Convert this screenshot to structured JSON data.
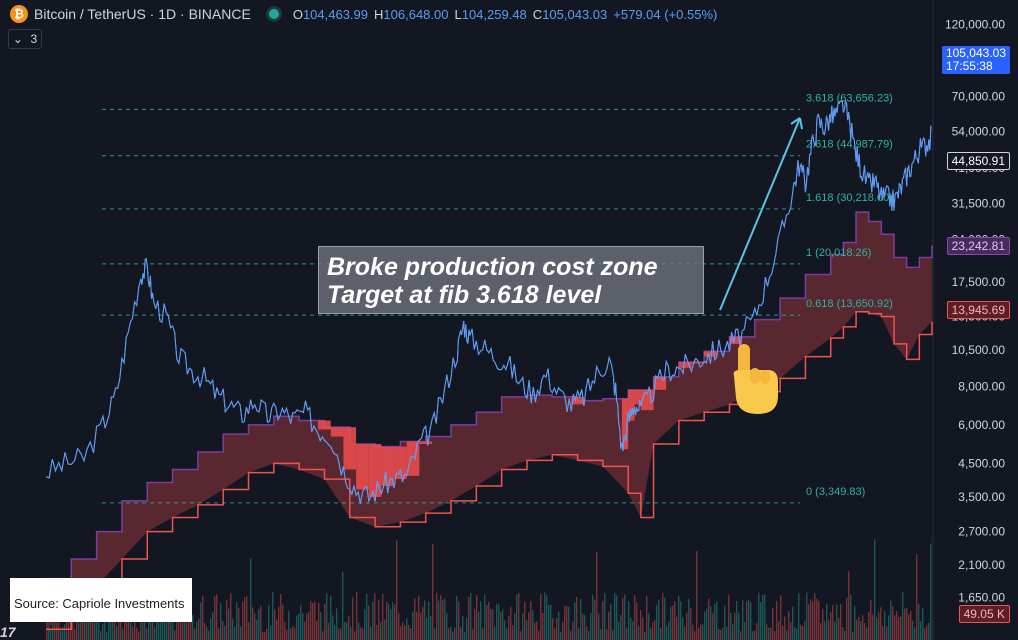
{
  "header": {
    "symbol": "Bitcoin / TetherUS · 1D · BINANCE",
    "coin_glyph": "₿",
    "ohlc": [
      {
        "k": "O",
        "v": "104,463.99"
      },
      {
        "k": "H",
        "v": "106,648.00"
      },
      {
        "k": "L",
        "v": "104,259.48"
      },
      {
        "k": "C",
        "v": "105,043.03"
      }
    ],
    "change": "+579.04 (+0.55%)",
    "indicator_count": "3",
    "chevron": "⌄"
  },
  "annotation": {
    "line1": "Broke production cost zone",
    "line2": "Target at fib 3.618 level"
  },
  "source": "Source: Capriole Investments",
  "logo": "17",
  "colors": {
    "background": "#131722",
    "price": "#5b9cf6",
    "cost_band_fill": "#5d2830",
    "cost_upper": "#7b3ea0",
    "cost_lower": "#f05350",
    "fib_line": "#2bb5a0",
    "arrow": "#5bc4e6"
  },
  "price_labels": {
    "last_price": "105,043.03",
    "countdown": "17:55:38",
    "ma_value": "44,850.91",
    "upper_value": "23,242.81",
    "lower_value": "13,945.69",
    "volume_value": "49.05 K"
  },
  "chart_data": {
    "type": "line",
    "scale": "log",
    "ylim": [
      1200,
      140000
    ],
    "yticks": [
      {
        "value": 120000,
        "label": "120,000.00"
      },
      {
        "value": 70000,
        "label": "70,000.00"
      },
      {
        "value": 54000,
        "label": "54,000.00"
      },
      {
        "value": 41000,
        "label": "41,000.00"
      },
      {
        "value": 31500,
        "label": "31,500.00"
      },
      {
        "value": 24000,
        "label": "24,000.00"
      },
      {
        "value": 17500,
        "label": "17,500.00"
      },
      {
        "value": 13500,
        "label": "13,500.00"
      },
      {
        "value": 10500,
        "label": "10,500.00"
      },
      {
        "value": 8000,
        "label": "8,000.00"
      },
      {
        "value": 6000,
        "label": "6,000.00"
      },
      {
        "value": 4500,
        "label": "4,500.00"
      },
      {
        "value": 3500,
        "label": "3,500.00"
      },
      {
        "value": 2700,
        "label": "2,700.00"
      },
      {
        "value": 2100,
        "label": "2,100.00"
      },
      {
        "value": 1650,
        "label": "1,650.00"
      }
    ],
    "fib_levels": [
      {
        "value": 63656.23,
        "label": "3.618 (63,656.23)"
      },
      {
        "value": 44987.79,
        "label": "2.618 (44,987.79)"
      },
      {
        "value": 30218.0,
        "label": "1.618 (30,218.00)"
      },
      {
        "value": 20018.26,
        "label": "1 (20,018.26)"
      },
      {
        "value": 13650.92,
        "label": "0.618 (13,650.92)"
      },
      {
        "value": 3349.83,
        "label": "0 (3,349.83)"
      }
    ],
    "price_series": [
      [
        0,
        4200
      ],
      [
        3,
        4500
      ],
      [
        6,
        4700
      ],
      [
        9,
        6000
      ],
      [
        11,
        7500
      ],
      [
        13,
        12000
      ],
      [
        15,
        18500
      ],
      [
        16,
        19500
      ],
      [
        17,
        15000
      ],
      [
        19,
        13500
      ],
      [
        21,
        10000
      ],
      [
        23,
        9000
      ],
      [
        25,
        8500
      ],
      [
        27,
        7500
      ],
      [
        29,
        7000
      ],
      [
        31,
        6500
      ],
      [
        33,
        7200
      ],
      [
        35,
        6400
      ],
      [
        37,
        6700
      ],
      [
        39,
        6300
      ],
      [
        41,
        6600
      ],
      [
        43,
        5800
      ],
      [
        45,
        5500
      ],
      [
        47,
        4300
      ],
      [
        49,
        3700
      ],
      [
        51,
        3500
      ],
      [
        53,
        3800
      ],
      [
        55,
        4000
      ],
      [
        57,
        4100
      ],
      [
        59,
        5200
      ],
      [
        61,
        5800
      ],
      [
        63,
        7800
      ],
      [
        65,
        10500
      ],
      [
        66,
        12800
      ],
      [
        67,
        11500
      ],
      [
        69,
        10800
      ],
      [
        71,
        10000
      ],
      [
        73,
        9500
      ],
      [
        75,
        8200
      ],
      [
        77,
        7600
      ],
      [
        79,
        8800
      ],
      [
        81,
        7600
      ],
      [
        83,
        7000
      ],
      [
        85,
        7400
      ],
      [
        87,
        8800
      ],
      [
        89,
        9800
      ],
      [
        90,
        7800
      ],
      [
        91,
        5000
      ],
      [
        92,
        6200
      ],
      [
        93,
        7000
      ],
      [
        94,
        6700
      ],
      [
        96,
        7800
      ],
      [
        98,
        9000
      ],
      [
        100,
        9200
      ],
      [
        102,
        9500
      ],
      [
        104,
        10000
      ],
      [
        106,
        10500
      ],
      [
        108,
        11000
      ],
      [
        110,
        11800
      ],
      [
        112,
        13500
      ],
      [
        114,
        18000
      ],
      [
        116,
        24000
      ],
      [
        118,
        35000
      ],
      [
        119,
        42000
      ],
      [
        120,
        37000
      ],
      [
        121,
        48000
      ],
      [
        122,
        58000
      ],
      [
        123,
        56000
      ],
      [
        124,
        60000
      ],
      [
        125,
        62000
      ],
      [
        126,
        66000
      ],
      [
        127,
        57000
      ],
      [
        128,
        46000
      ],
      [
        129,
        40000
      ],
      [
        130,
        36000
      ],
      [
        131,
        37000
      ],
      [
        132,
        33000
      ],
      [
        133,
        33000
      ],
      [
        134,
        32000
      ],
      [
        135,
        35000
      ],
      [
        136,
        39000
      ],
      [
        137,
        43000
      ],
      [
        138,
        47000
      ],
      [
        139,
        49000
      ],
      [
        140,
        52000
      ]
    ],
    "cost_upper": [
      [
        0,
        1900
      ],
      [
        4,
        2200
      ],
      [
        8,
        2700
      ],
      [
        12,
        3400
      ],
      [
        16,
        3900
      ],
      [
        20,
        4300
      ],
      [
        24,
        4900
      ],
      [
        28,
        5600
      ],
      [
        32,
        6000
      ],
      [
        36,
        6400
      ],
      [
        40,
        6200
      ],
      [
        44,
        5900
      ],
      [
        48,
        5200
      ],
      [
        52,
        5100
      ],
      [
        56,
        5300
      ],
      [
        60,
        5500
      ],
      [
        64,
        6000
      ],
      [
        68,
        6600
      ],
      [
        72,
        7400
      ],
      [
        76,
        7500
      ],
      [
        80,
        7400
      ],
      [
        84,
        7200
      ],
      [
        88,
        7300
      ],
      [
        92,
        7800
      ],
      [
        96,
        8600
      ],
      [
        100,
        9600
      ],
      [
        104,
        10400
      ],
      [
        108,
        11600
      ],
      [
        112,
        13200
      ],
      [
        116,
        15500
      ],
      [
        120,
        18500
      ],
      [
        124,
        21500
      ],
      [
        126,
        23500
      ],
      [
        128,
        29500
      ],
      [
        130,
        27500
      ],
      [
        132,
        25000
      ],
      [
        134,
        21000
      ],
      [
        136,
        19500
      ],
      [
        138,
        21000
      ],
      [
        140,
        23000
      ]
    ],
    "cost_lower": [
      [
        0,
        1300
      ],
      [
        4,
        1500
      ],
      [
        8,
        1800
      ],
      [
        12,
        2200
      ],
      [
        16,
        2700
      ],
      [
        20,
        3000
      ],
      [
        24,
        3300
      ],
      [
        28,
        3700
      ],
      [
        32,
        4200
      ],
      [
        36,
        4500
      ],
      [
        40,
        4300
      ],
      [
        44,
        4000
      ],
      [
        48,
        3000
      ],
      [
        52,
        2800
      ],
      [
        56,
        2900
      ],
      [
        60,
        3100
      ],
      [
        64,
        3400
      ],
      [
        68,
        3800
      ],
      [
        72,
        4300
      ],
      [
        76,
        4600
      ],
      [
        80,
        4800
      ],
      [
        84,
        4600
      ],
      [
        88,
        4400
      ],
      [
        92,
        3600
      ],
      [
        94,
        3000
      ],
      [
        96,
        5200
      ],
      [
        100,
        6200
      ],
      [
        104,
        6600
      ],
      [
        108,
        7000
      ],
      [
        112,
        7700
      ],
      [
        116,
        8500
      ],
      [
        120,
        10000
      ],
      [
        124,
        11500
      ],
      [
        126,
        12500
      ],
      [
        128,
        14000
      ],
      [
        130,
        13800
      ],
      [
        132,
        13500
      ],
      [
        134,
        11000
      ],
      [
        136,
        9800
      ],
      [
        138,
        11800
      ],
      [
        140,
        13000
      ]
    ]
  }
}
